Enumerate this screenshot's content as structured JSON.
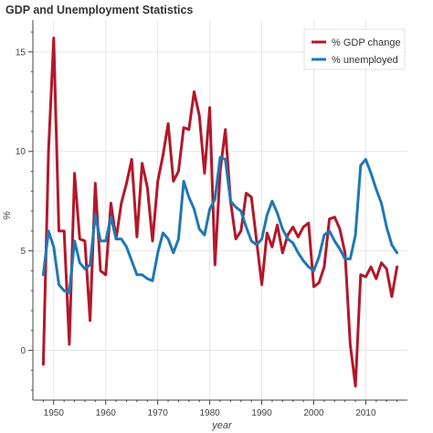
{
  "chart_data": {
    "type": "line",
    "title": "GDP and Unemployment Statistics",
    "xlabel": "year",
    "ylabel": "%",
    "xlim": [
      1946,
      2018
    ],
    "ylim": [
      -2.5,
      16.6
    ],
    "x_ticks": [
      1950,
      1960,
      1970,
      1980,
      1990,
      2000,
      2010
    ],
    "y_ticks": [
      0,
      5,
      10,
      15
    ],
    "grid": true,
    "legend_position": "top-right",
    "series": [
      {
        "name": "% GDP change",
        "color": "#b2182b",
        "x": [
          1948,
          1949,
          1950,
          1951,
          1952,
          1953,
          1954,
          1955,
          1956,
          1957,
          1958,
          1959,
          1960,
          1961,
          1962,
          1963,
          1964,
          1965,
          1966,
          1967,
          1968,
          1969,
          1970,
          1971,
          1972,
          1973,
          1974,
          1975,
          1976,
          1977,
          1978,
          1979,
          1980,
          1981,
          1982,
          1983,
          1984,
          1985,
          1986,
          1987,
          1988,
          1989,
          1990,
          1991,
          1992,
          1993,
          1994,
          1995,
          1996,
          1997,
          1998,
          1999,
          2000,
          2001,
          2002,
          2003,
          2004,
          2005,
          2006,
          2007,
          2008,
          2009,
          2010,
          2011,
          2012,
          2013,
          2014,
          2015,
          2016
        ],
        "values": [
          -0.7,
          10.0,
          15.7,
          6.0,
          6.0,
          0.3,
          8.9,
          5.6,
          5.5,
          1.5,
          8.4,
          4.0,
          3.8,
          7.4,
          5.6,
          7.4,
          8.4,
          9.6,
          5.7,
          9.4,
          8.2,
          5.5,
          8.5,
          9.8,
          11.4,
          8.5,
          9.0,
          11.2,
          11.1,
          13.0,
          11.8,
          8.9,
          12.2,
          4.3,
          9.0,
          11.1,
          7.5,
          5.6,
          6.0,
          7.9,
          7.7,
          5.5,
          3.3,
          5.9,
          5.2,
          6.3,
          4.9,
          5.8,
          6.2,
          5.7,
          6.2,
          6.4,
          3.2,
          3.4,
          4.2,
          6.6,
          6.7,
          6.1,
          4.9,
          0.3,
          -1.8,
          3.8,
          3.7,
          4.2,
          3.6,
          4.4,
          4.1,
          2.7,
          4.2
        ]
      },
      {
        "name": "% unemployed",
        "color": "#1f78b4",
        "x": [
          1948,
          1949,
          1950,
          1951,
          1952,
          1953,
          1954,
          1955,
          1956,
          1957,
          1958,
          1959,
          1960,
          1961,
          1962,
          1963,
          1964,
          1965,
          1966,
          1967,
          1968,
          1969,
          1970,
          1971,
          1972,
          1973,
          1974,
          1975,
          1976,
          1977,
          1978,
          1979,
          1980,
          1981,
          1982,
          1983,
          1984,
          1985,
          1986,
          1987,
          1988,
          1989,
          1990,
          1991,
          1992,
          1993,
          1994,
          1995,
          1996,
          1997,
          1998,
          1999,
          2000,
          2001,
          2002,
          2003,
          2004,
          2005,
          2006,
          2007,
          2008,
          2009,
          2010,
          2011,
          2012,
          2013,
          2014,
          2015,
          2016
        ],
        "values": [
          3.8,
          6.0,
          5.2,
          3.3,
          3.0,
          2.9,
          5.5,
          4.4,
          4.1,
          4.3,
          6.8,
          5.5,
          5.5,
          6.7,
          5.6,
          5.6,
          5.2,
          4.5,
          3.8,
          3.8,
          3.6,
          3.5,
          4.9,
          5.9,
          5.6,
          4.9,
          5.6,
          8.5,
          7.7,
          7.1,
          6.1,
          5.8,
          7.1,
          7.6,
          9.7,
          9.6,
          7.5,
          7.2,
          7.0,
          6.2,
          5.5,
          5.3,
          5.6,
          6.8,
          7.5,
          6.9,
          6.1,
          5.6,
          5.4,
          4.9,
          4.5,
          4.2,
          4.0,
          4.7,
          5.8,
          6.0,
          5.5,
          5.1,
          4.6,
          4.6,
          5.8,
          9.3,
          9.6,
          8.9,
          8.1,
          7.4,
          6.2,
          5.3,
          4.9
        ]
      }
    ]
  }
}
